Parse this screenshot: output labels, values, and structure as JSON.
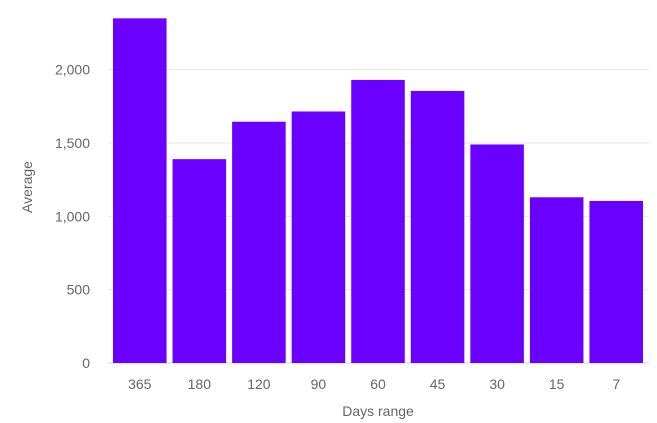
{
  "chart_data": {
    "type": "bar",
    "categories": [
      "365",
      "180",
      "120",
      "90",
      "60",
      "45",
      "30",
      "15",
      "7"
    ],
    "values": [
      2350,
      1390,
      1645,
      1715,
      1930,
      1855,
      1490,
      1130,
      1105
    ],
    "xlabel": "Days range",
    "ylabel": "Average",
    "ylim": [
      0,
      2400
    ],
    "yticks": [
      0,
      500,
      1000,
      1500,
      2000
    ],
    "ytick_labels": [
      "0",
      "500",
      "1,000",
      "1,500",
      "2,000"
    ],
    "grid": true,
    "legend": "none",
    "bar_color": "#6a00ff"
  }
}
